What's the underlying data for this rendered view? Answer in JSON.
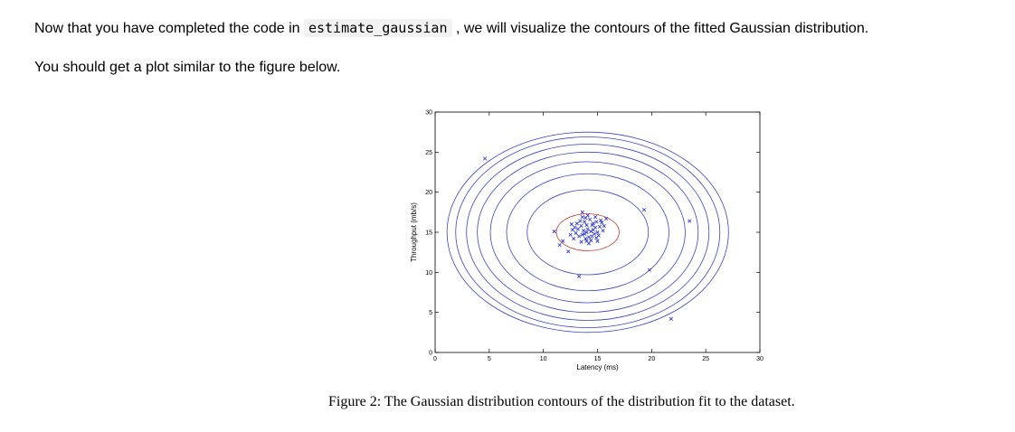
{
  "text": {
    "para1_before": "Now that you have completed the code in ",
    "para1_code": "estimate_gaussian",
    "para1_after": " , we will visualize the contours of the fitted Gaussian distribution.",
    "para2": "You should get a plot similar to the figure below.",
    "caption": "Figure 2: The Gaussian distribution contours of the distribution fit to the dataset."
  },
  "colors": {
    "contour": "#3a44c8",
    "inner_contour": "#c0392b",
    "marker": "#1f2bd6"
  },
  "chart_data": {
    "type": "scatter",
    "title": "",
    "xlabel": "Latency (ms)",
    "ylabel": "Throughput (mb/s)",
    "xlim": [
      0,
      30
    ],
    "ylim": [
      0,
      30
    ],
    "xticks": [
      0,
      5,
      10,
      15,
      20,
      25,
      30
    ],
    "yticks": [
      0,
      5,
      10,
      15,
      20,
      25,
      30
    ],
    "grid": false,
    "legend": "none",
    "marker": "x",
    "contour_center": [
      14.1,
      15.0
    ],
    "contour_radii": [
      [
        2.9,
        2.3
      ],
      [
        5.6,
        5.3
      ],
      [
        7.5,
        7.3
      ],
      [
        9.0,
        8.8
      ],
      [
        10.2,
        10.0
      ],
      [
        11.2,
        11.0
      ],
      [
        12.2,
        11.9
      ],
      [
        13.0,
        12.5
      ]
    ],
    "points": [
      [
        4.6,
        24.2
      ],
      [
        19.3,
        17.8
      ],
      [
        23.5,
        16.4
      ],
      [
        19.8,
        10.3
      ],
      [
        21.8,
        4.2
      ],
      [
        13.3,
        9.5
      ],
      [
        11.5,
        13.4
      ],
      [
        11.0,
        15.1
      ],
      [
        11.8,
        13.9
      ],
      [
        12.3,
        12.6
      ],
      [
        13.6,
        17.5
      ],
      [
        12.6,
        16.0
      ],
      [
        15.8,
        16.7
      ],
      [
        13.2,
        15.4
      ],
      [
        13.6,
        14.7
      ],
      [
        14.0,
        15.9
      ],
      [
        14.4,
        15.1
      ],
      [
        14.8,
        15.6
      ],
      [
        13.8,
        16.3
      ],
      [
        14.2,
        14.4
      ],
      [
        15.0,
        15.0
      ],
      [
        13.5,
        15.8
      ],
      [
        14.6,
        16.1
      ],
      [
        13.0,
        14.9
      ],
      [
        14.9,
        14.3
      ],
      [
        14.1,
        15.4
      ],
      [
        13.9,
        14.2
      ],
      [
        14.5,
        15.9
      ],
      [
        13.4,
        16.4
      ],
      [
        15.2,
        15.7
      ],
      [
        14.7,
        14.8
      ],
      [
        13.7,
        15.2
      ],
      [
        14.3,
        16.6
      ],
      [
        15.4,
        16.2
      ],
      [
        12.9,
        15.6
      ],
      [
        14.0,
        13.9
      ],
      [
        15.1,
        14.6
      ],
      [
        13.3,
        14.5
      ],
      [
        14.6,
        15.3
      ],
      [
        13.9,
        16.8
      ],
      [
        12.8,
        14.2
      ],
      [
        15.5,
        15.2
      ],
      [
        14.2,
        13.6
      ],
      [
        13.6,
        16.9
      ],
      [
        14.8,
        16.9
      ],
      [
        13.1,
        16.1
      ],
      [
        15.0,
        13.9
      ],
      [
        14.4,
        14.0
      ],
      [
        12.7,
        15.3
      ],
      [
        15.3,
        16.5
      ],
      [
        13.8,
        14.8
      ],
      [
        14.9,
        16.3
      ],
      [
        13.5,
        13.8
      ],
      [
        14.1,
        17.1
      ],
      [
        15.6,
        15.8
      ],
      [
        12.5,
        14.7
      ],
      [
        14.0,
        15.0
      ],
      [
        14.5,
        14.5
      ]
    ]
  }
}
